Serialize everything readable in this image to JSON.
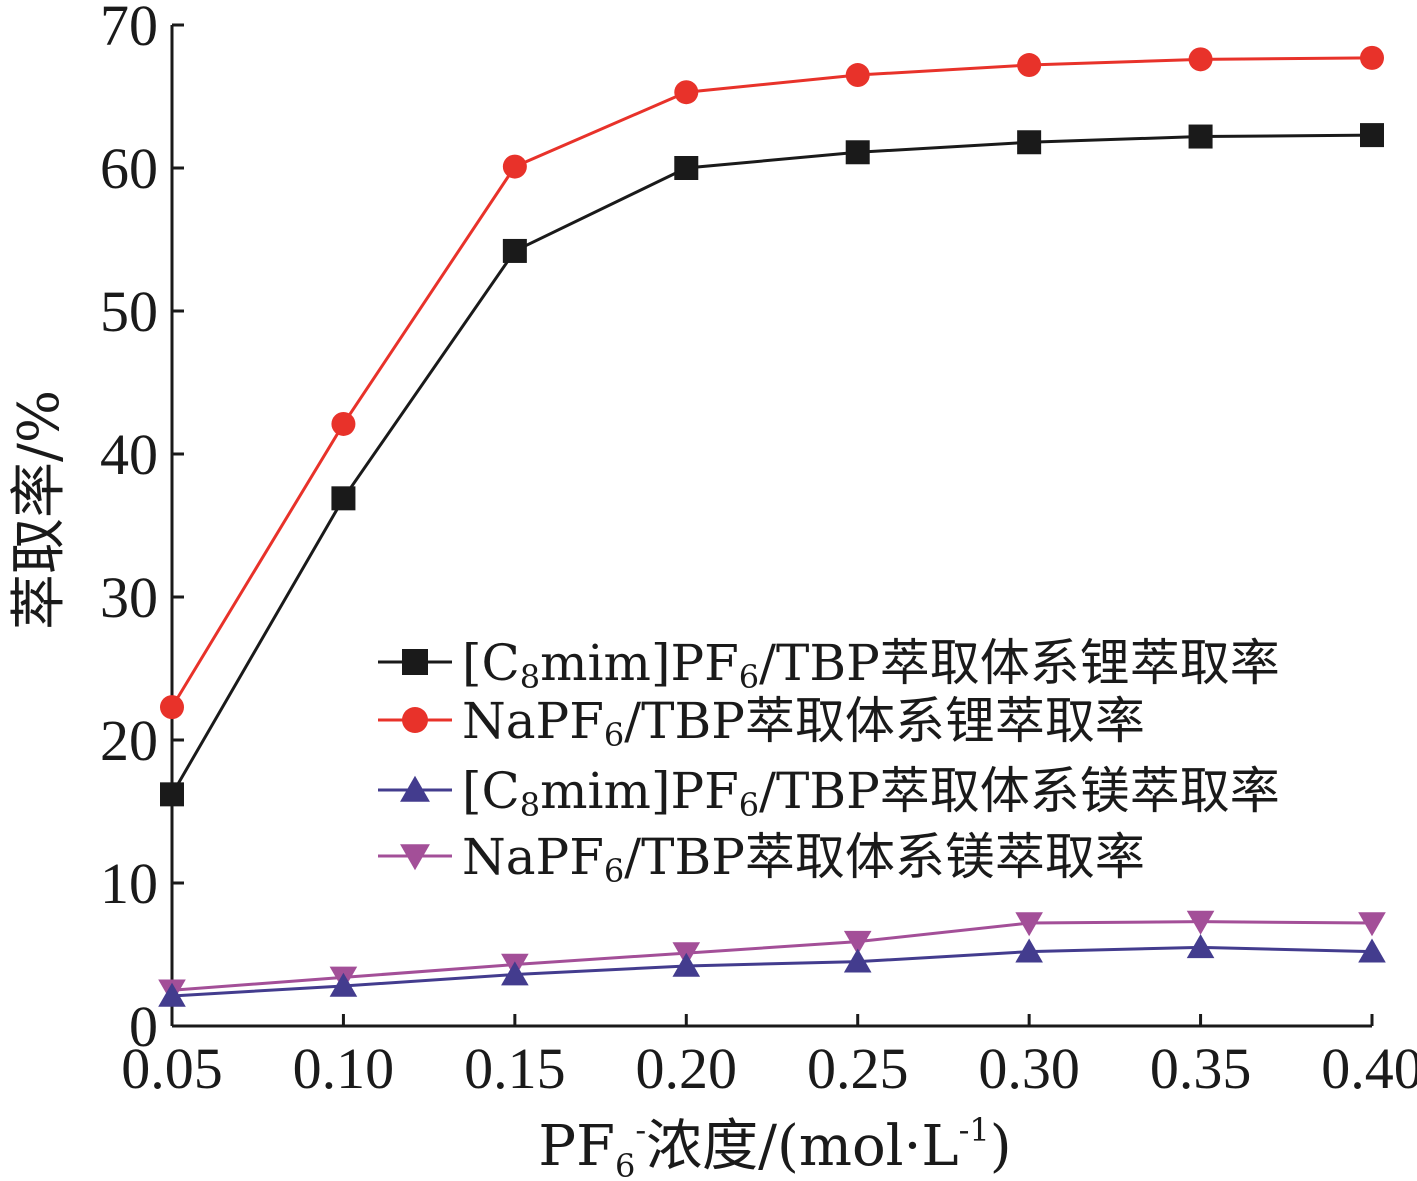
{
  "chart_data": {
    "type": "line",
    "x": [
      0.05,
      0.1,
      0.15,
      0.2,
      0.25,
      0.3,
      0.35,
      0.4
    ],
    "x_tick_labels": [
      "0.05",
      "0.10",
      "0.15",
      "0.20",
      "0.25",
      "0.30",
      "0.35",
      "0.40"
    ],
    "y_ticks": [
      0,
      10,
      20,
      30,
      40,
      50,
      60,
      70
    ],
    "xlim": [
      0.05,
      0.4
    ],
    "ylim": [
      0,
      70
    ],
    "grid": false,
    "legend_position": "center-right",
    "ylabel": "萃取率/%",
    "xlabel": {
      "main": "PF",
      "sub": "6",
      "sup": "-",
      "rest": "浓度/(mol·L",
      "unit_sup": "-1",
      "close": ")"
    },
    "series": [
      {
        "name": "[C8mim]PF6/TBP萃取体系锂萃取率",
        "label": {
          "a": "[C",
          "b": "8",
          "c": "mim]PF",
          "d": "6",
          "e": "/TBP萃取体系锂萃取率"
        },
        "color": "#1a1a1a",
        "marker": "square",
        "values": [
          16.2,
          36.9,
          54.2,
          60.0,
          61.1,
          61.8,
          62.2,
          62.3
        ]
      },
      {
        "name": "NaPF6/TBP萃取体系锂萃取率",
        "label": {
          "a": "NaPF",
          "b": "6",
          "c": "/TBP萃取体系锂萃取率",
          "d": "",
          "e": ""
        },
        "color": "#e8322a",
        "marker": "circle",
        "values": [
          22.3,
          42.1,
          60.1,
          65.3,
          66.5,
          67.2,
          67.6,
          67.7
        ]
      },
      {
        "name": "[C8mim]PF6/TBP萃取体系镁萃取率",
        "label": {
          "a": "[C",
          "b": "8",
          "c": "mim]PF",
          "d": "6",
          "e": "/TBP萃取体系镁萃取率"
        },
        "color": "#433c8e",
        "marker": "triangle-up",
        "values": [
          2.1,
          2.8,
          3.6,
          4.2,
          4.5,
          5.2,
          5.5,
          5.2
        ]
      },
      {
        "name": "NaPF6/TBP萃取体系镁萃取率",
        "label": {
          "a": "NaPF",
          "b": "6",
          "c": "/TBP萃取体系镁萃取率",
          "d": "",
          "e": ""
        },
        "color": "#a34f98",
        "marker": "triangle-down",
        "values": [
          2.5,
          3.4,
          4.3,
          5.1,
          5.9,
          7.2,
          7.3,
          7.2
        ]
      }
    ]
  }
}
